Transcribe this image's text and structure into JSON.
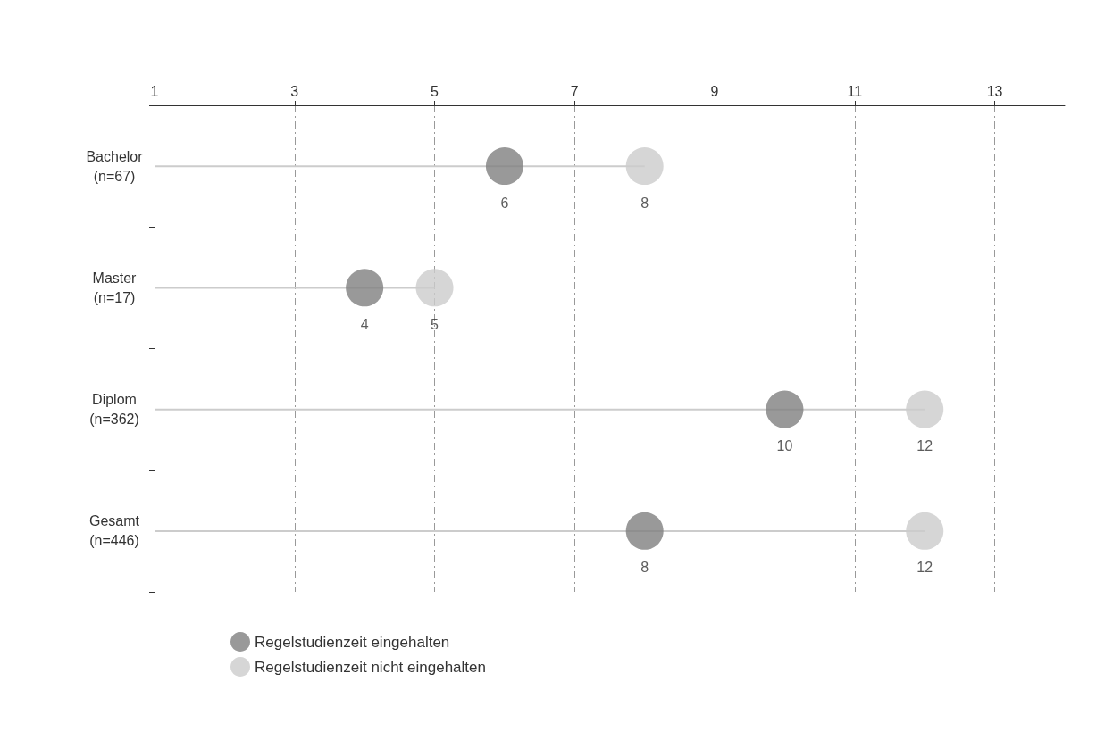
{
  "chart_data": {
    "type": "scatter",
    "orientation": "horizontal",
    "categories": [
      "Bachelor\n(n=67)",
      "Master\n(n=17)",
      "Diplom\n(n=362)",
      "Gesamt\n(n=446)"
    ],
    "series": [
      {
        "name": "Regelstudienzeit eingehalten",
        "color": "#808080",
        "values": [
          6,
          4,
          10,
          8
        ]
      },
      {
        "name": "Regelstudienzeit nicht eingehalten",
        "color": "#cccccc",
        "type": "lollipop",
        "values": [
          8,
          5,
          12,
          12
        ]
      }
    ],
    "xlim": [
      1,
      14
    ],
    "xticks": [
      1,
      3,
      5,
      7,
      9,
      11,
      13
    ],
    "grid": "x",
    "legend": "bottom left",
    "data_labels": true,
    "marker": "circle"
  }
}
